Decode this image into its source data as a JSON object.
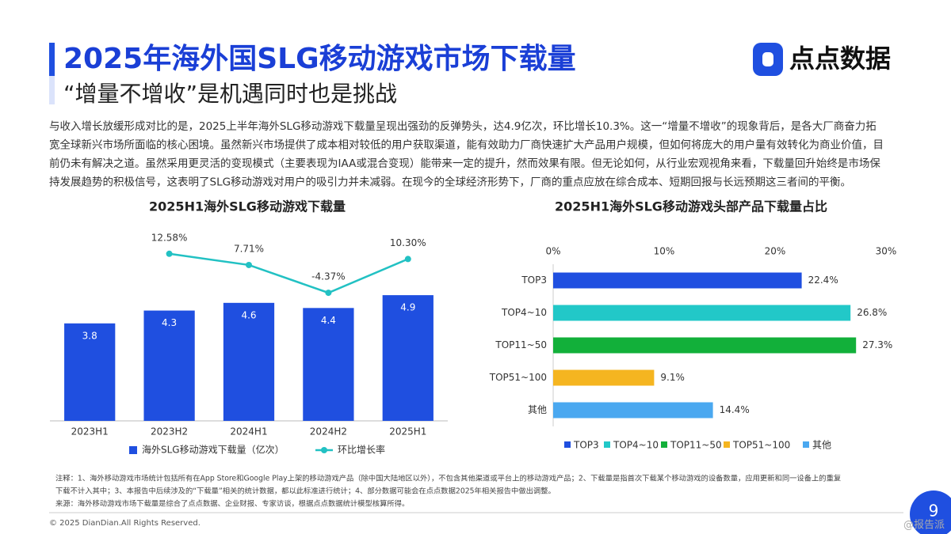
{
  "header": {
    "title": "2025年海外国SLG移动游戏市场下载量",
    "subtitle": "“增量不增收”是机遇同时也是挑战",
    "logo": "点点数据"
  },
  "body": [
    "与收入增长放缓形成对比的是，2025上半年海外SLG移动游戏下载量呈现出强劲的反弹势头，达4.9亿次，环比增长10.3%。这一“增量不增收”的现象背后，是各大厂商奋力拓",
    "宽全球新兴市场所面临的核心困境。虽然新兴市场提供了成本相对较低的用户获取渠道，能有效助力厂商快速扩大产品用户规模，但如何将庞大的用户量有效转化为商业价值，目",
    "前仍未有解决之道。虽然采用更灵活的变现模式（主要表现为IAA或混合变现）能带来一定的提升，然而效果有限。但无论如何，从行业宏观视角来看，下载量回升始终是市场保",
    "持发展趋势的积极信号，这表明了SLG移动游戏对用户的吸引力并未减弱。在现今的全球经济形势下，厂商的重点应放在综合成本、短期回报与长远预期这三者间的平衡。"
  ],
  "chart_data": [
    {
      "type": "bar",
      "title": "2025H1海外SLG移动游戏下载量",
      "categories": [
        "2023H1",
        "2023H2",
        "2024H1",
        "2024H2",
        "2025H1"
      ],
      "series": [
        {
          "name": "海外SLG移动游戏下载量（亿次）",
          "color": "#1f4fe0",
          "values": [
            3.8,
            4.3,
            4.6,
            4.4,
            4.9
          ]
        },
        {
          "name": "环比增长率",
          "color": "#22c1c3",
          "type": "line",
          "axis": "y2",
          "values": [
            null,
            12.58,
            7.71,
            -4.37,
            10.3
          ],
          "value_labels": [
            null,
            "12.58%",
            "7.71%",
            "-4.37%",
            "10.30%"
          ]
        }
      ],
      "ylim": [
        0,
        7
      ],
      "y2lim": [
        -60,
        18
      ],
      "legend": "bottom"
    },
    {
      "type": "hbar",
      "title": "2025H1海外SLG移动游戏头部产品下载量占比",
      "categories": [
        "TOP3",
        "TOP4~10",
        "TOP11~50",
        "TOP51~100",
        "其他"
      ],
      "values": [
        22.4,
        26.8,
        27.3,
        9.1,
        14.4
      ],
      "value_labels": [
        "22.4%",
        "26.8%",
        "27.3%",
        "9.1%",
        "14.4%"
      ],
      "colors": [
        "#1f4fe0",
        "#22c8c8",
        "#12b03a",
        "#f5b520",
        "#4aa8f0"
      ],
      "xlim": [
        0,
        30
      ],
      "xticks": [
        {
          "value": 0,
          "label": "0%"
        },
        {
          "value": 10,
          "label": "10%"
        },
        {
          "value": 20,
          "label": "20%"
        },
        {
          "value": 30,
          "label": "30%"
        }
      ],
      "legend": "bottom"
    }
  ],
  "notes": [
    "注释：1、海外移动游戏市场统计包括所有在App Store和Google Play上架的移动游戏产品（除中国大陆地区以外），不包含其他渠道或平台上的移动游戏产品；2、下载量是指首次下载某个移动游戏的设备数量，应用更新和同一设备上的重复",
    "下载不计入其中；3、本报告中后续涉及的“下载量”相关的统计数据，都以此标准进行统计；4、部分数据可能会在点点数据2025年相关报告中做出调整。",
    "来源：海外移动游戏市场下载量是综合了点点数据、企业财报、专家访谈，根据点点数据统计模型核算所得。"
  ],
  "copyright": "© 2025 DianDian.All Rights Reserved.",
  "page_number": "9",
  "watermark": "@报告派"
}
